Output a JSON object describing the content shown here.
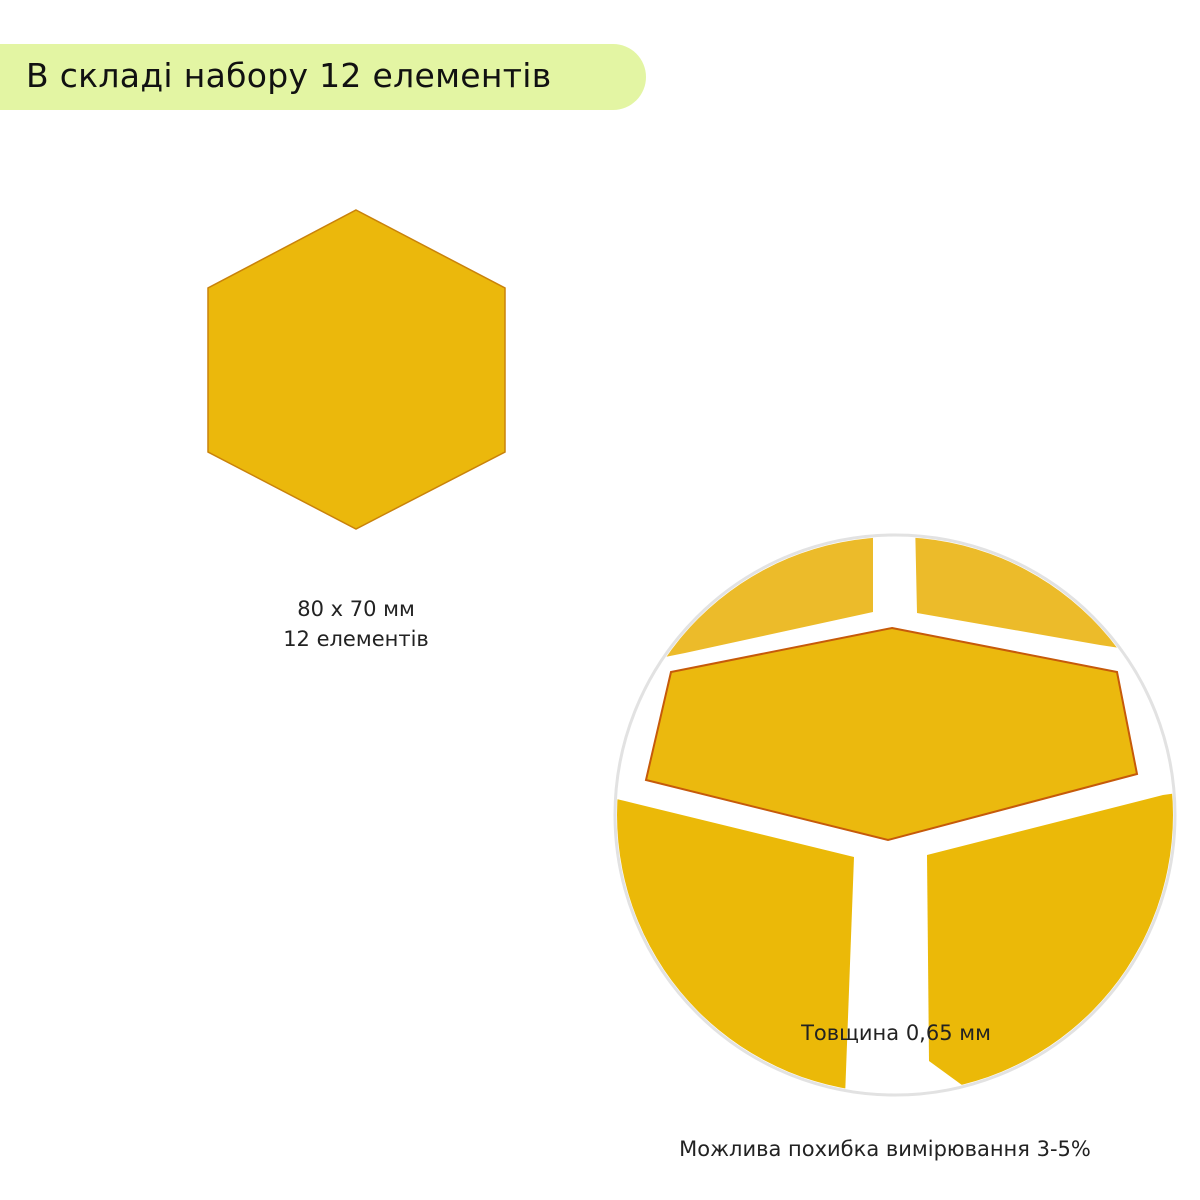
{
  "header": {
    "title": "В складі набору 12 елементів"
  },
  "item": {
    "size": "80 x 70 мм",
    "count": "12 елементів"
  },
  "closeup": {
    "thickness": "Товщина 0,65 мм"
  },
  "footer": {
    "note": "Можлива похибка вимірювання 3-5%"
  },
  "colors": {
    "accent": "#e3f5a3",
    "hexagon": "#ebb80c",
    "edge": "#c97a0a"
  }
}
